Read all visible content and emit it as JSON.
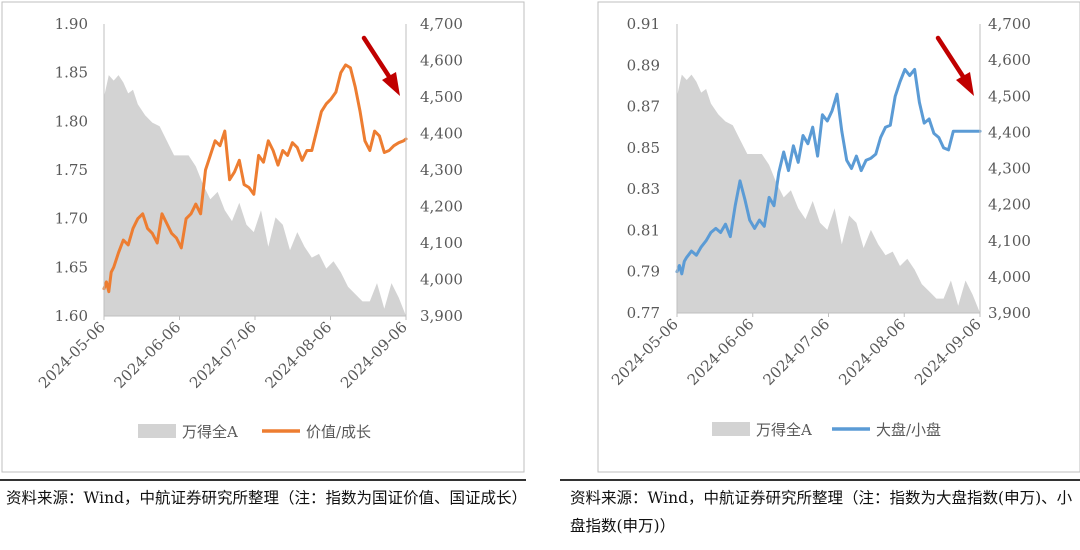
{
  "charts": [
    {
      "caption": "资料来源：Wind，中航证券研究所整理（注：指数为国证价值、国证成长）",
      "chart_data": {
        "type": "line",
        "x_ticks": [
          "2024-05-06",
          "2024-06-06",
          "2024-07-06",
          "2024-08-06",
          "2024-09-06"
        ],
        "y_left": {
          "ticks": [
            "1.60",
            "1.65",
            "1.70",
            "1.75",
            "1.80",
            "1.85",
            "1.90"
          ],
          "ylim": [
            1.6,
            1.9
          ]
        },
        "y_right": {
          "ticks": [
            "3,900",
            "4,000",
            "4,100",
            "4,200",
            "4,300",
            "4,400",
            "4,500",
            "4,600",
            "4,700"
          ],
          "ylim": [
            3900,
            4700
          ]
        },
        "legend": [
          "万得全A",
          "价值/成长"
        ],
        "series": [
          {
            "name": "万得全A",
            "kind": "area",
            "axis": "right",
            "color": "#d3d3d3",
            "x": [
              0,
              2,
              4,
              6,
              8,
              10,
              12,
              14,
              17,
              20,
              23,
              26,
              29,
              32,
              35,
              38,
              41,
              44,
              47,
              50,
              53,
              56,
              59,
              62,
              65,
              68,
              71,
              74,
              77,
              80,
              83,
              86,
              89,
              92,
              95,
              98,
              101,
              104,
              107,
              110,
              113,
              116,
              119,
              122,
              125
            ],
            "y": [
              4500,
              4560,
              4545,
              4560,
              4540,
              4510,
              4520,
              4480,
              4450,
              4430,
              4420,
              4380,
              4340,
              4340,
              4340,
              4310,
              4260,
              4220,
              4240,
              4190,
              4160,
              4210,
              4150,
              4130,
              4190,
              4090,
              4170,
              4150,
              4080,
              4130,
              4090,
              4060,
              4070,
              4030,
              4050,
              4020,
              3980,
              3960,
              3940,
              3940,
              3990,
              3920,
              3990,
              3950,
              3900
            ]
          },
          {
            "name": "价值/成长",
            "kind": "line",
            "axis": "left",
            "color": "#ed7d31",
            "x": [
              0,
              1,
              2,
              3,
              4,
              6,
              8,
              10,
              12,
              14,
              16,
              18,
              20,
              22,
              24,
              26,
              28,
              30,
              32,
              34,
              36,
              38,
              40,
              42,
              44,
              46,
              48,
              50,
              52,
              54,
              56,
              58,
              60,
              62,
              64,
              66,
              68,
              70,
              72,
              74,
              76,
              78,
              80,
              82,
              84,
              86,
              88,
              90,
              92,
              94,
              96,
              98,
              100,
              102,
              104,
              106,
              108,
              110,
              112,
              114,
              116,
              118,
              120,
              122,
              124,
              125
            ],
            "y": [
              1.628,
              1.635,
              1.625,
              1.645,
              1.65,
              1.665,
              1.678,
              1.673,
              1.69,
              1.7,
              1.705,
              1.69,
              1.685,
              1.675,
              1.705,
              1.695,
              1.685,
              1.68,
              1.67,
              1.7,
              1.705,
              1.715,
              1.705,
              1.75,
              1.765,
              1.78,
              1.775,
              1.79,
              1.74,
              1.748,
              1.76,
              1.735,
              1.732,
              1.725,
              1.765,
              1.758,
              1.78,
              1.77,
              1.755,
              1.77,
              1.765,
              1.778,
              1.773,
              1.76,
              1.77,
              1.77,
              1.79,
              1.81,
              1.818,
              1.823,
              1.83,
              1.85,
              1.858,
              1.855,
              1.835,
              1.81,
              1.78,
              1.77,
              1.79,
              1.785,
              1.768,
              1.77,
              1.775,
              1.778,
              1.78,
              1.782
            ]
          }
        ]
      }
    },
    {
      "caption": "资料来源：Wind，中航证券研究所整理（注：指数为大盘指数(申万)、小盘指数(申万)）",
      "chart_data": {
        "type": "line",
        "x_ticks": [
          "2024-05-06",
          "2024-06-06",
          "2024-07-06",
          "2024-08-06",
          "2024-09-06"
        ],
        "y_left": {
          "ticks": [
            "0.77",
            "0.79",
            "0.81",
            "0.83",
            "0.85",
            "0.87",
            "0.89",
            "0.91"
          ],
          "ylim": [
            0.77,
            0.91
          ]
        },
        "y_right": {
          "ticks": [
            "3,900",
            "4,000",
            "4,100",
            "4,200",
            "4,300",
            "4,400",
            "4,500",
            "4,600",
            "4,700"
          ],
          "ylim": [
            3900,
            4700
          ]
        },
        "legend": [
          "万得全A",
          "大盘/小盘"
        ],
        "series": [
          {
            "name": "万得全A",
            "kind": "area",
            "axis": "right",
            "color": "#d3d3d3",
            "x": [
              0,
              2,
              4,
              6,
              8,
              10,
              12,
              14,
              17,
              20,
              23,
              26,
              29,
              32,
              35,
              38,
              41,
              44,
              47,
              50,
              53,
              56,
              59,
              62,
              65,
              68,
              71,
              74,
              77,
              80,
              83,
              86,
              89,
              92,
              95,
              98,
              101,
              104,
              107,
              110,
              113,
              116,
              119,
              122,
              125
            ],
            "y": [
              4500,
              4560,
              4545,
              4560,
              4540,
              4510,
              4520,
              4480,
              4450,
              4430,
              4420,
              4380,
              4340,
              4340,
              4340,
              4310,
              4260,
              4220,
              4240,
              4190,
              4160,
              4210,
              4150,
              4130,
              4190,
              4090,
              4170,
              4150,
              4080,
              4130,
              4090,
              4060,
              4070,
              4030,
              4050,
              4020,
              3980,
              3960,
              3940,
              3940,
              3990,
              3920,
              3990,
              3950,
              3900
            ]
          },
          {
            "name": "大盘/小盘",
            "kind": "line",
            "axis": "left",
            "color": "#5b9bd5",
            "x": [
              0,
              1,
              2,
              3,
              4,
              6,
              8,
              10,
              12,
              14,
              16,
              18,
              20,
              22,
              24,
              26,
              28,
              30,
              32,
              34,
              36,
              38,
              40,
              42,
              44,
              46,
              48,
              50,
              52,
              54,
              56,
              58,
              60,
              62,
              64,
              66,
              68,
              70,
              72,
              74,
              76,
              78,
              80,
              82,
              84,
              86,
              88,
              90,
              92,
              94,
              96,
              98,
              100,
              102,
              104,
              106,
              108,
              110,
              112,
              114,
              116,
              118,
              120,
              122,
              124,
              125
            ],
            "y": [
              0.79,
              0.793,
              0.789,
              0.795,
              0.797,
              0.8,
              0.798,
              0.802,
              0.805,
              0.809,
              0.811,
              0.809,
              0.813,
              0.807,
              0.822,
              0.834,
              0.825,
              0.815,
              0.811,
              0.815,
              0.812,
              0.826,
              0.822,
              0.838,
              0.848,
              0.839,
              0.851,
              0.843,
              0.856,
              0.852,
              0.86,
              0.846,
              0.866,
              0.863,
              0.868,
              0.876,
              0.858,
              0.844,
              0.84,
              0.846,
              0.839,
              0.844,
              0.845,
              0.847,
              0.855,
              0.86,
              0.861,
              0.875,
              0.882,
              0.888,
              0.885,
              0.888,
              0.872,
              0.862,
              0.864,
              0.857,
              0.855,
              0.85,
              0.849,
              0.858,
              0.858,
              0.858,
              0.858,
              0.858,
              0.858,
              0.858
            ]
          }
        ]
      }
    }
  ]
}
